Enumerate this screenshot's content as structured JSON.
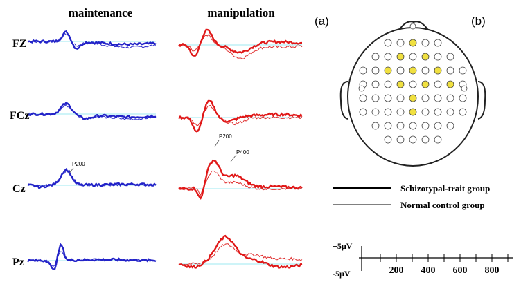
{
  "panel_a": {
    "label": "(a)",
    "columns": [
      "maintenance",
      "manipulation"
    ],
    "channels": [
      "FZ",
      "FCz",
      "Cz",
      "Pz"
    ],
    "annotations": {
      "maintenance_cz": "P200",
      "manipulation_cz_early": "P200",
      "manipulation_cz_late": "P400"
    }
  },
  "panel_b": {
    "label": "(b)"
  },
  "legend": [
    "Schizotypal-trait group",
    "Normal control group"
  ],
  "scale": {
    "amplitude_top": "+5µV",
    "amplitude_bottom": "-5µV",
    "time_ticks": [
      "200",
      "400",
      "600",
      "800"
    ]
  }
}
